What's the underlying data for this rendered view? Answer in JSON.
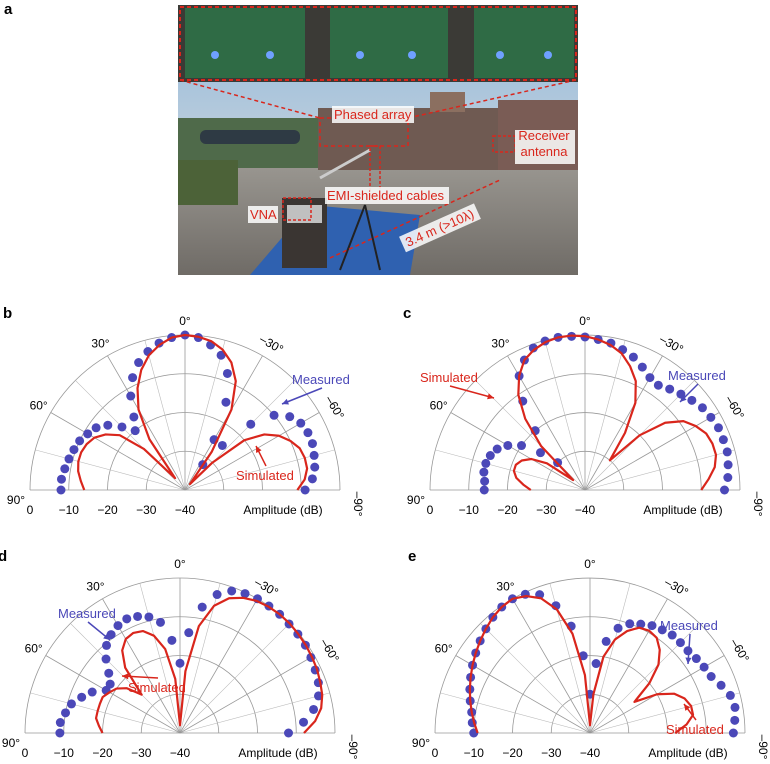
{
  "photo_panel": {
    "label": "a",
    "annotations": [
      "Phased array",
      "Receiver antenna",
      "EMI-shielded cables",
      "VNA",
      "3.4 m (>10λ)"
    ]
  },
  "chart_data": [
    {
      "type": "polar",
      "label": "b",
      "ylabel": "Amplitude (dB)",
      "xlim": [
        -90,
        90
      ],
      "ylim": [
        -40,
        0
      ],
      "xticks": [
        {
          "value": 90,
          "label": "90°"
        },
        {
          "value": 60,
          "label": "60°"
        },
        {
          "value": 30,
          "label": "30°"
        },
        {
          "value": 0,
          "label": "0°"
        },
        {
          "value": -30,
          "label": "–30°"
        },
        {
          "value": -60,
          "label": "–60°"
        },
        {
          "value": -90,
          "label": "–90°"
        }
      ],
      "yticks": [
        0,
        {
          "value": -10,
          "label": "−10"
        },
        {
          "value": -20,
          "label": "−20"
        },
        {
          "value": -30,
          "label": "−30"
        },
        {
          "value": -40,
          "label": "−40"
        }
      ],
      "x": [
        -90,
        -85,
        -80,
        -75,
        -70,
        -65,
        -60,
        -55,
        -50,
        -45,
        -40,
        -35,
        -30,
        -25,
        -20,
        -15,
        -10,
        -5,
        0,
        5,
        10,
        15,
        20,
        25,
        30,
        35,
        40,
        45,
        50,
        55,
        60,
        65,
        70,
        75,
        80,
        85,
        90
      ],
      "series": [
        {
          "name": "Measured",
          "color": "#4b48b8",
          "values": [
            -9,
            -7,
            -6,
            -5.5,
            -5,
            -5,
            -5.5,
            -7,
            -10,
            -16,
            -25,
            -32,
            -25,
            -15,
            -8,
            -4,
            -2,
            -0.5,
            0,
            -0.5,
            -1.5,
            -3,
            -5,
            -8,
            -12,
            -17,
            -20,
            -17,
            -14,
            -12,
            -11,
            -10,
            -9.5,
            -9,
            -8.5,
            -8,
            -8
          ]
        },
        {
          "name": "Simulated",
          "color": "#d9261c",
          "values": [
            -11,
            -9,
            -8,
            -8,
            -8.5,
            -10,
            -12,
            -15,
            -20,
            -30,
            -38,
            -28,
            -16,
            -9,
            -5,
            -2.5,
            -1,
            -0.3,
            0,
            -0.5,
            -2,
            -4,
            -7,
            -11,
            -16,
            -24,
            -36,
            -25,
            -18,
            -15,
            -13,
            -12,
            -11.5,
            -11.5,
            -12,
            -13,
            -14
          ]
        }
      ]
    },
    {
      "type": "polar",
      "label": "c",
      "ylabel": "Amplitude (dB)",
      "xlim": [
        -90,
        90
      ],
      "ylim": [
        -40,
        0
      ],
      "xticks": [
        {
          "value": 90,
          "label": "90°"
        },
        {
          "value": 60,
          "label": "60°"
        },
        {
          "value": 30,
          "label": "30°"
        },
        {
          "value": 0,
          "label": "0°"
        },
        {
          "value": -30,
          "label": "–30°"
        },
        {
          "value": -60,
          "label": "–60°"
        },
        {
          "value": -90,
          "label": "–90°"
        }
      ],
      "yticks": [
        0,
        {
          "value": -10,
          "label": "−10"
        },
        {
          "value": -20,
          "label": "−20"
        },
        {
          "value": -30,
          "label": "−30"
        },
        {
          "value": -40,
          "label": "−40"
        }
      ],
      "x": [
        -90,
        -85,
        -80,
        -75,
        -70,
        -65,
        -60,
        -55,
        -50,
        -45,
        -40,
        -35,
        -30,
        -25,
        -20,
        -15,
        -10,
        -5,
        0,
        5,
        10,
        15,
        20,
        25,
        30,
        35,
        40,
        45,
        50,
        55,
        60,
        65,
        70,
        75,
        80,
        85,
        90
      ],
      "series": [
        {
          "name": "Measured",
          "color": "#4b48b8",
          "values": [
            -4,
            -3,
            -2.5,
            -2,
            -2,
            -2,
            -2.5,
            -3,
            -4,
            -5,
            -6,
            -7,
            -6.5,
            -5,
            -3.5,
            -2.5,
            -1.5,
            -1,
            -0.5,
            -0.2,
            0,
            -0.2,
            -1,
            -3,
            -6,
            -12,
            -20,
            -30,
            -25,
            -20,
            -17,
            -15,
            -14,
            -13.5,
            -13.5,
            -14,
            -14
          ]
        },
        {
          "name": "Simulated",
          "color": "#d9261c",
          "values": [
            -10,
            -8,
            -6,
            -5,
            -5,
            -5.5,
            -7,
            -9,
            -13,
            -20,
            -30,
            -22,
            -14,
            -9,
            -6,
            -3.5,
            -2,
            -1,
            -0.3,
            0,
            0,
            -0.5,
            -1.5,
            -3,
            -6,
            -10,
            -16,
            -24,
            -36,
            -28,
            -24,
            -22,
            -21,
            -21,
            -22,
            -24,
            -26
          ]
        }
      ]
    },
    {
      "type": "polar",
      "label": "d",
      "ylabel": "Amplitude (dB)",
      "xlim": [
        -90,
        90
      ],
      "ylim": [
        -40,
        0
      ],
      "xticks": [
        {
          "value": 90,
          "label": "90°"
        },
        {
          "value": 60,
          "label": "60°"
        },
        {
          "value": 30,
          "label": "30°"
        },
        {
          "value": 0,
          "label": "0°"
        },
        {
          "value": -30,
          "label": "–30°"
        },
        {
          "value": -60,
          "label": "–60°"
        },
        {
          "value": -90,
          "label": "–90°"
        }
      ],
      "yticks": [
        0,
        {
          "value": -10,
          "label": "−10"
        },
        {
          "value": -20,
          "label": "−20"
        },
        {
          "value": -30,
          "label": "−30"
        },
        {
          "value": -40,
          "label": "−40"
        }
      ],
      "x": [
        -90,
        -85,
        -80,
        -75,
        -70,
        -65,
        -60,
        -55,
        -50,
        -45,
        -40,
        -35,
        -30,
        -25,
        -20,
        -15,
        -10,
        -5,
        0,
        5,
        10,
        15,
        20,
        25,
        30,
        35,
        40,
        45,
        50,
        55,
        60,
        65,
        70,
        75,
        80,
        85,
        90
      ],
      "series": [
        {
          "name": "Measured",
          "color": "#4b48b8",
          "values": [
            -12,
            -8,
            -5,
            -3,
            -2,
            -1.5,
            -1,
            -0.5,
            -0.3,
            -0.2,
            0,
            0,
            0,
            -0.3,
            -1,
            -3,
            -7,
            -14,
            -22,
            -16,
            -11,
            -9,
            -8,
            -7.5,
            -8,
            -9,
            -10.5,
            -13,
            -16,
            -18,
            -18,
            -15,
            -13,
            -11,
            -10,
            -9,
            -9
          ]
        },
        {
          "name": "Simulated",
          "color": "#d9261c",
          "values": [
            -8,
            -5,
            -3,
            -2,
            -1.5,
            -1,
            -0.7,
            -0.4,
            -0.2,
            0,
            0,
            -0.2,
            -0.6,
            -1.5,
            -3,
            -6,
            -12,
            -24,
            -38,
            -26,
            -18,
            -14,
            -12,
            -11.5,
            -12,
            -14,
            -18,
            -26,
            -22,
            -20,
            -19,
            -18,
            -18,
            -18,
            -18,
            -19,
            -20
          ]
        }
      ]
    },
    {
      "type": "polar",
      "label": "e",
      "ylabel": "Amplitude (dB)",
      "xlim": [
        -90,
        90
      ],
      "ylim": [
        -40,
        0
      ],
      "xticks": [
        {
          "value": 90,
          "label": "90°"
        },
        {
          "value": 60,
          "label": "60°"
        },
        {
          "value": 30,
          "label": "30°"
        },
        {
          "value": 0,
          "label": "0°"
        },
        {
          "value": -30,
          "label": "–30°"
        },
        {
          "value": -60,
          "label": "–60°"
        },
        {
          "value": -90,
          "label": "–90°"
        }
      ],
      "yticks": [
        0,
        {
          "value": -10,
          "label": "−10"
        },
        {
          "value": -20,
          "label": "−20"
        },
        {
          "value": -30,
          "label": "−30"
        },
        {
          "value": -40,
          "label": "−40"
        }
      ],
      "x": [
        -90,
        -85,
        -80,
        -75,
        -70,
        -65,
        -60,
        -55,
        -50,
        -45,
        -40,
        -35,
        -30,
        -25,
        -20,
        -15,
        -10,
        -5,
        0,
        5,
        10,
        15,
        20,
        25,
        30,
        35,
        40,
        45,
        50,
        55,
        60,
        65,
        70,
        75,
        80,
        85,
        90
      ],
      "series": [
        {
          "name": "Measured",
          "color": "#4b48b8",
          "values": [
            -3,
            -2.5,
            -2,
            -2.5,
            -4,
            -5.5,
            -6,
            -6.5,
            -7,
            -7,
            -7,
            -7.5,
            -8,
            -9,
            -10,
            -12,
            -16,
            -22,
            -30,
            -20,
            -12,
            -6,
            -2,
            -0.5,
            0,
            -0.3,
            -1,
            -2,
            -3,
            -4,
            -5,
            -6,
            -7,
            -8,
            -9,
            -9.5,
            -10
          ]
        },
        {
          "name": "Simulated",
          "color": "#d9261c",
          "values": [
            -18,
            -15,
            -13,
            -13,
            -14,
            -16,
            -20,
            -26,
            -20,
            -15,
            -12,
            -10,
            -9.5,
            -10,
            -12,
            -15,
            -20,
            -30,
            -38,
            -25,
            -14,
            -7,
            -3,
            -1,
            0,
            -0.3,
            -1,
            -2,
            -3,
            -4,
            -5,
            -6,
            -7,
            -8,
            -9,
            -10,
            -11
          ]
        }
      ]
    }
  ]
}
